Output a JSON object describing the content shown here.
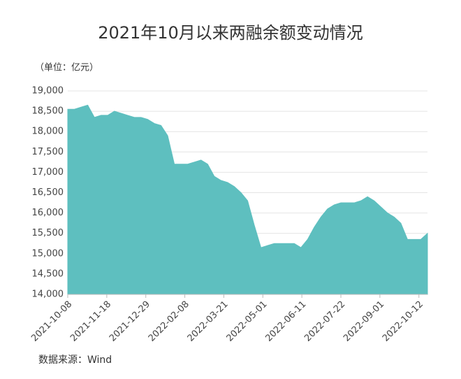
{
  "chart_data": {
    "type": "area",
    "title": "2021年10月以来两融余额变动情况",
    "unit_note": "（单位：亿元）",
    "source": "数据来源：Wind",
    "color": "#5ebfbf",
    "grid": true,
    "x": [
      "2021-10-08",
      "2021-10-15",
      "2021-10-22",
      "2021-10-29",
      "2021-11-05",
      "2021-11-12",
      "2021-11-19",
      "2021-11-26",
      "2021-12-03",
      "2021-12-10",
      "2021-12-17",
      "2021-12-24",
      "2021-12-31",
      "2022-01-07",
      "2022-01-14",
      "2022-01-21",
      "2022-01-28",
      "2022-02-11",
      "2022-02-18",
      "2022-02-25",
      "2022-03-04",
      "2022-03-11",
      "2022-03-18",
      "2022-03-25",
      "2022-04-01",
      "2022-04-08",
      "2022-04-15",
      "2022-04-22",
      "2022-04-29",
      "2022-05-06",
      "2022-05-13",
      "2022-05-20",
      "2022-05-27",
      "2022-06-03",
      "2022-06-10",
      "2022-06-17",
      "2022-06-24",
      "2022-07-01",
      "2022-07-08",
      "2022-07-15",
      "2022-07-22",
      "2022-07-29",
      "2022-08-05",
      "2022-08-12",
      "2022-08-19",
      "2022-08-26",
      "2022-09-02",
      "2022-09-09",
      "2022-09-16",
      "2022-09-23",
      "2022-09-30",
      "2022-10-14",
      "2022-10-21"
    ],
    "values": [
      18550,
      18550,
      18600,
      18650,
      18350,
      18400,
      18400,
      18500,
      18450,
      18400,
      18350,
      18350,
      18300,
      18200,
      18150,
      17900,
      17200,
      17200,
      17250,
      17300,
      17200,
      16900,
      16800,
      16750,
      16650,
      16500,
      16300,
      15700,
      15150,
      15200,
      15250,
      15250,
      15250,
      15250,
      15150,
      15350,
      15650,
      15900,
      16100,
      16200,
      16250,
      16250,
      16250,
      16300,
      16400,
      16300,
      16150,
      16000,
      15900,
      15750,
      15350,
      15350,
      15500
    ],
    "ylim": [
      14000,
      19000
    ],
    "yticks": [
      {
        "value": 14000,
        "label": "14,000"
      },
      {
        "value": 14500,
        "label": "14,500"
      },
      {
        "value": 15000,
        "label": "15,000"
      },
      {
        "value": 15500,
        "label": "15,500"
      },
      {
        "value": 16000,
        "label": "16,000"
      },
      {
        "value": 16500,
        "label": "16,500"
      },
      {
        "value": 17000,
        "label": "17,000"
      },
      {
        "value": 17500,
        "label": "17,500"
      },
      {
        "value": 18000,
        "label": "18,000"
      },
      {
        "value": 18500,
        "label": "18,500"
      },
      {
        "value": 19000,
        "label": "19,000"
      }
    ],
    "xticks": [
      "2021-10-08",
      "2021-11-18",
      "2021-12-29",
      "2022-02-08",
      "2022-03-21",
      "2022-05-01",
      "2022-06-11",
      "2022-07-22",
      "2022-09-01",
      "2022-10-12"
    ]
  }
}
